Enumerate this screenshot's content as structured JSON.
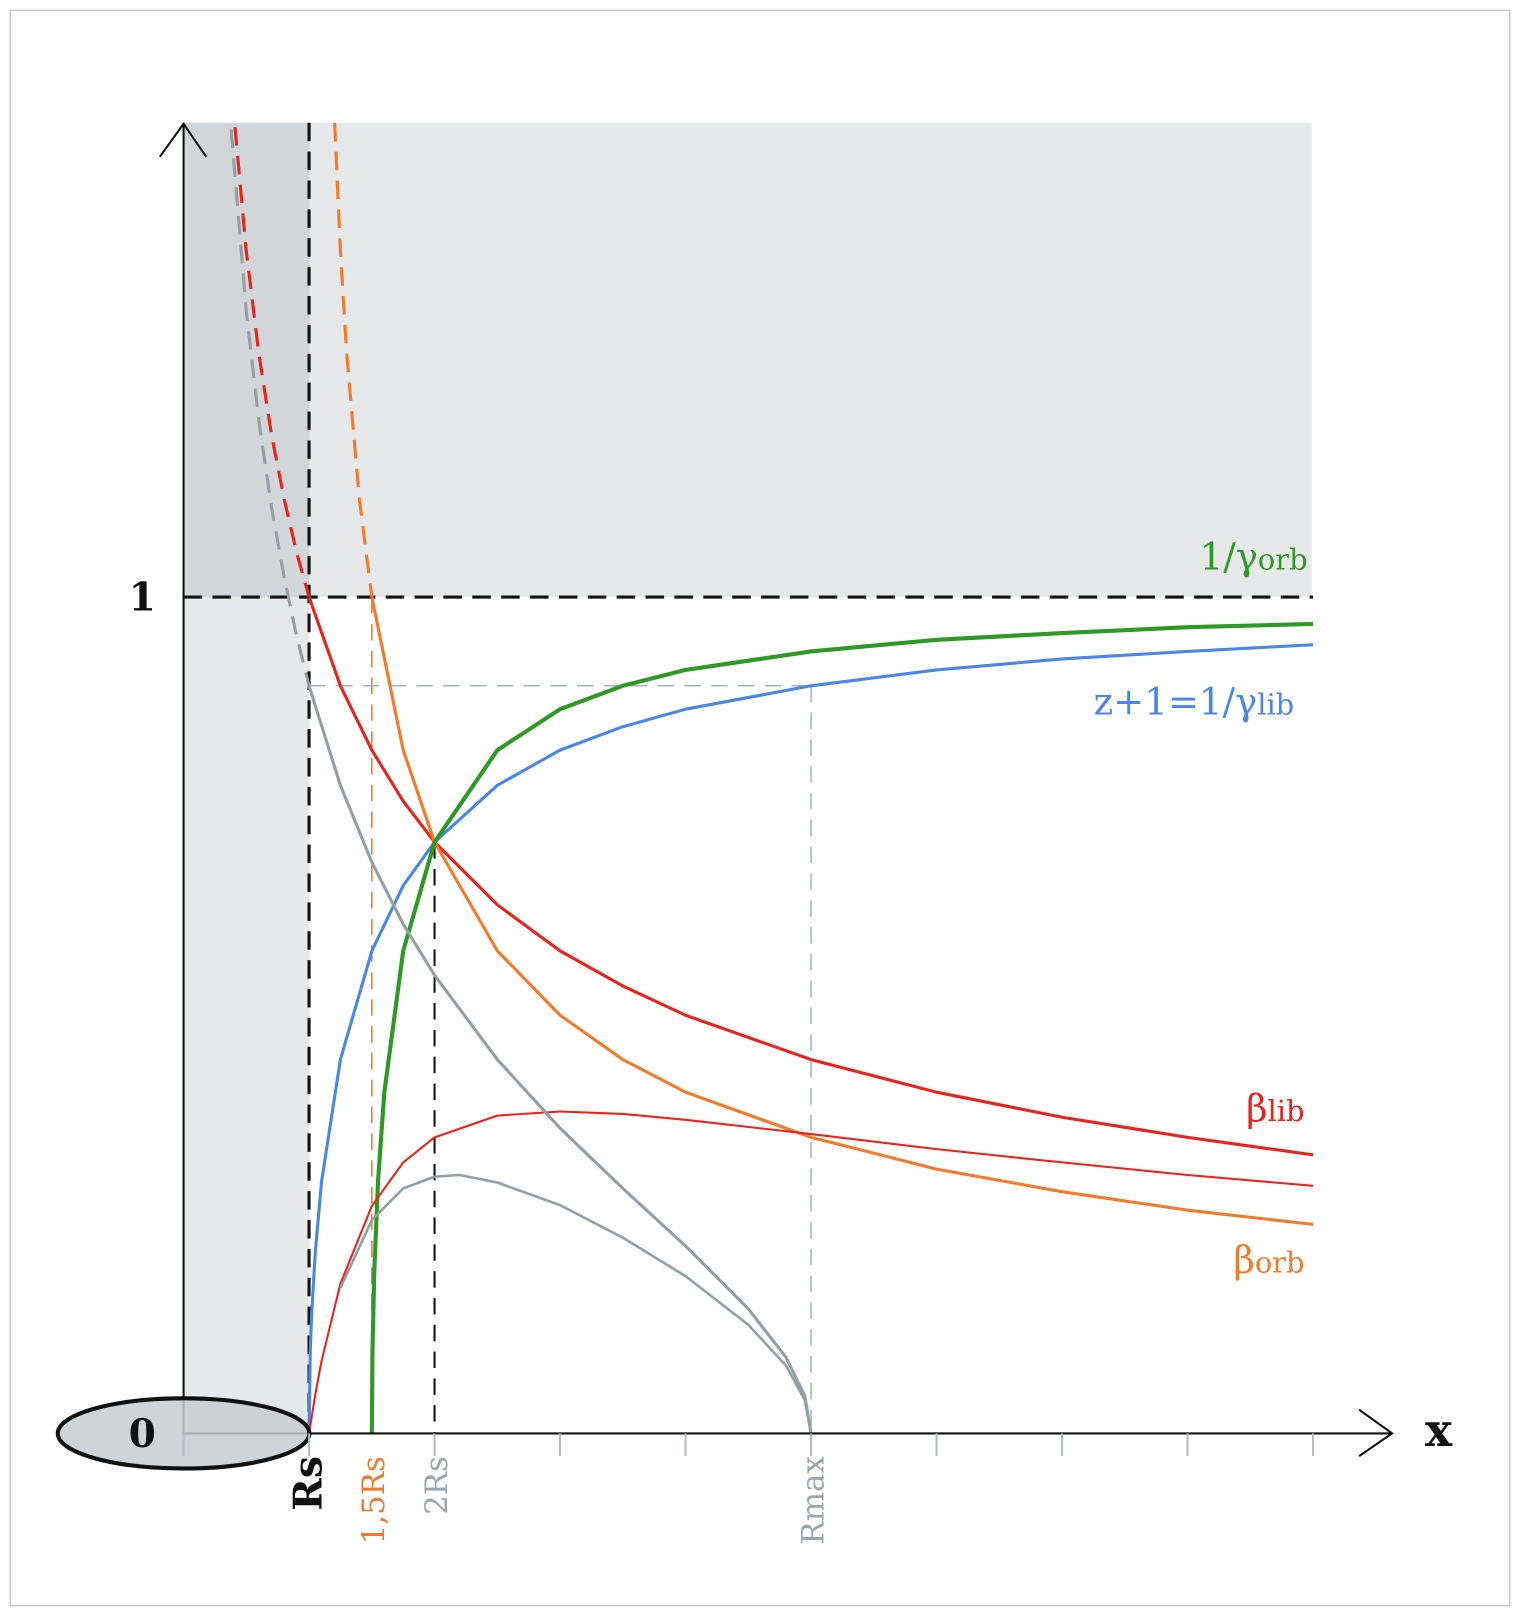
{
  "chart_data": {
    "type": "line",
    "title": "",
    "xlabel": "x",
    "ylabel": "",
    "x_unit": "Rs",
    "xlim": [
      0,
      9
    ],
    "ylim": [
      0,
      1.57
    ],
    "x_ticks": [
      0,
      1,
      2,
      3,
      4,
      5,
      6,
      7,
      8,
      9
    ],
    "y_tick_labels": [
      {
        "value": 0,
        "label": "0"
      },
      {
        "value": 1,
        "label": "1"
      }
    ],
    "x_marker_labels": [
      {
        "value": 1,
        "label": "Rs",
        "color": "#111111"
      },
      {
        "value": 1.5,
        "label": "1,5Rs",
        "color": "#f07a2c"
      },
      {
        "value": 2,
        "label": "2Rs",
        "color": "#9aa6ab"
      },
      {
        "value": 5,
        "label": "Rmax",
        "color": "#9aa6ab"
      }
    ],
    "reference_lines": {
      "rmax_level": 0.894
    },
    "colors": {
      "red": "#e8231c",
      "orange": "#f47a2a",
      "green": "#2e9a25",
      "blue": "#4a86e8",
      "gray": "#929fa4",
      "shade_light": "#e6e8e9",
      "shade_dark": "#d3d6d9"
    },
    "series": [
      {
        "name": "beta_lib",
        "label": "β",
        "sub": "lib",
        "color": "#e8231c",
        "width": 3,
        "dashed": {
          "x": [
            0.41,
            0.5,
            0.6,
            0.7,
            0.8,
            0.9,
            1
          ],
          "y": [
            1.562,
            1.414,
            1.291,
            1.195,
            1.118,
            1.054,
            1
          ]
        },
        "x": [
          1,
          1.25,
          1.5,
          1.75,
          2,
          2.5,
          3,
          3.5,
          4,
          5,
          6,
          7,
          8,
          9
        ],
        "y": [
          1,
          0.894,
          0.817,
          0.756,
          0.707,
          0.632,
          0.577,
          0.535,
          0.5,
          0.447,
          0.408,
          0.378,
          0.354,
          0.333
        ]
      },
      {
        "name": "beta_orb",
        "label": "β",
        "sub": "orb",
        "color": "#f47a2a",
        "width": 3,
        "dashed": {
          "x": [
            1.204,
            1.25,
            1.3,
            1.4,
            1.5
          ],
          "y": [
            1.567,
            1.414,
            1.291,
            1.118,
            1
          ]
        },
        "x": [
          1.5,
          1.75,
          2,
          2.5,
          3,
          3.5,
          4,
          5,
          6,
          7,
          8,
          9
        ],
        "y": [
          1,
          0.817,
          0.707,
          0.577,
          0.5,
          0.447,
          0.408,
          0.354,
          0.316,
          0.289,
          0.267,
          0.25
        ]
      },
      {
        "name": "inv_gamma_lib",
        "label": "z+1=1/γ",
        "sub": "lib",
        "color": "#4a86e8",
        "width": 3,
        "x": [
          1,
          1.01,
          1.02,
          1.05,
          1.1,
          1.25,
          1.5,
          1.75,
          2,
          2.5,
          3,
          3.5,
          4,
          5,
          6,
          7,
          8,
          9
        ],
        "y": [
          0,
          0.0995,
          0.14,
          0.218,
          0.302,
          0.447,
          0.577,
          0.655,
          0.707,
          0.775,
          0.817,
          0.845,
          0.866,
          0.894,
          0.913,
          0.926,
          0.935,
          0.943
        ]
      },
      {
        "name": "inv_gamma_orb",
        "label": "1/γ",
        "sub": "orb",
        "color": "#2e9a25",
        "width": 4,
        "x": [
          1.5,
          1.505,
          1.52,
          1.55,
          1.6,
          1.75,
          2,
          2.5,
          3,
          3.5,
          4,
          5,
          6,
          7,
          8,
          9
        ],
        "y": [
          0,
          0.0995,
          0.196,
          0.302,
          0.408,
          0.577,
          0.707,
          0.817,
          0.866,
          0.894,
          0.913,
          0.935,
          0.949,
          0.957,
          0.964,
          0.968
        ]
      },
      {
        "name": "red_thin",
        "color": "#e8231c",
        "width": 2,
        "x": [
          1,
          1.05,
          1.1,
          1.25,
          1.5,
          1.75,
          2,
          2.5,
          3,
          3.5,
          4,
          5,
          6,
          7,
          8,
          9
        ],
        "y": [
          0,
          0.047,
          0.087,
          0.179,
          0.272,
          0.324,
          0.354,
          0.38,
          0.385,
          0.382,
          0.375,
          0.358,
          0.34,
          0.324,
          0.309,
          0.296
        ]
      },
      {
        "name": "gray_thick",
        "color": "#929fa4",
        "width": 3,
        "dashed": {
          "x": [
            0.38,
            0.5,
            0.6,
            0.7,
            0.8,
            0.9,
            1
          ],
          "y": [
            1.559,
            1.342,
            1.211,
            1.108,
            1.025,
            0.954,
            0.894
          ]
        },
        "x": [
          1,
          1.25,
          1.5,
          1.75,
          2,
          2.5,
          3,
          3.5,
          4,
          4.5,
          4.8,
          4.95,
          5
        ],
        "y": [
          0.894,
          0.775,
          0.683,
          0.609,
          0.548,
          0.447,
          0.365,
          0.293,
          0.224,
          0.149,
          0.091,
          0.045,
          0
        ]
      },
      {
        "name": "gray_thin",
        "color": "#929fa4",
        "width": 2.5,
        "x": [
          1.25,
          1.5,
          1.75,
          2,
          2.2,
          2.5,
          3,
          3.5,
          4,
          4.5,
          4.8,
          4.95,
          5
        ],
        "y": [
          0.174,
          0.255,
          0.293,
          0.307,
          0.309,
          0.3,
          0.273,
          0.234,
          0.188,
          0.13,
          0.081,
          0.04,
          0
        ]
      }
    ]
  }
}
